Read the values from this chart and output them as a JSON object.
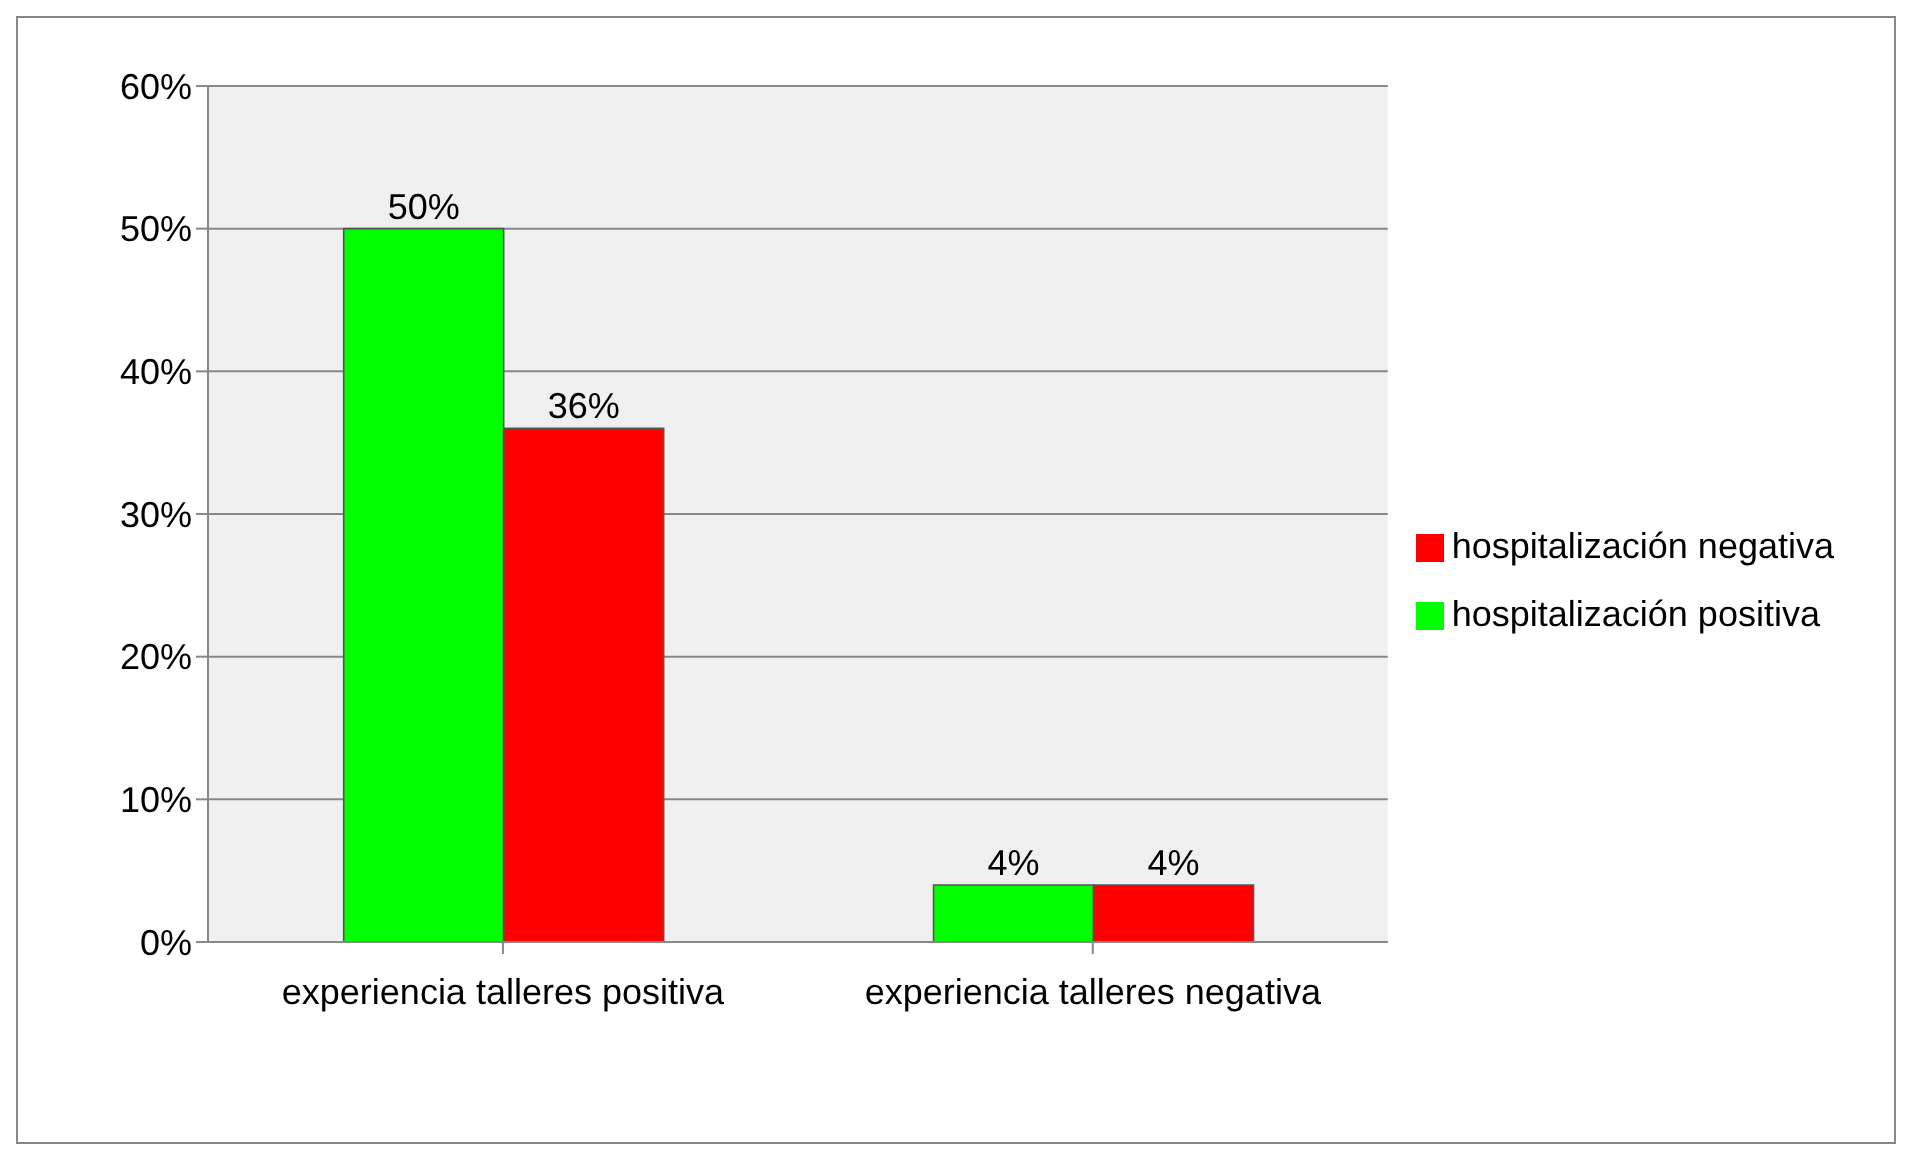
{
  "chart_data": {
    "type": "bar",
    "categories": [
      "experiencia talleres positiva",
      "experiencia talleres negativa"
    ],
    "series": [
      {
        "name": "hospitalización positiva",
        "color": "#00ff00",
        "values": [
          50,
          4
        ],
        "value_labels": [
          "50%",
          "4%"
        ]
      },
      {
        "name": "hospitalización negativa",
        "color": "#ff0000",
        "values": [
          36,
          4
        ],
        "value_labels": [
          "36%",
          "4%"
        ]
      }
    ],
    "ylim": [
      0,
      60
    ],
    "yticks": [
      {
        "value": 0,
        "label": "0%"
      },
      {
        "value": 10,
        "label": "10%"
      },
      {
        "value": 20,
        "label": "20%"
      },
      {
        "value": 30,
        "label": "30%"
      },
      {
        "value": 40,
        "label": "40%"
      },
      {
        "value": 50,
        "label": "50%"
      },
      {
        "value": 60,
        "label": "60%"
      }
    ],
    "grid": "y",
    "legend": "right"
  }
}
